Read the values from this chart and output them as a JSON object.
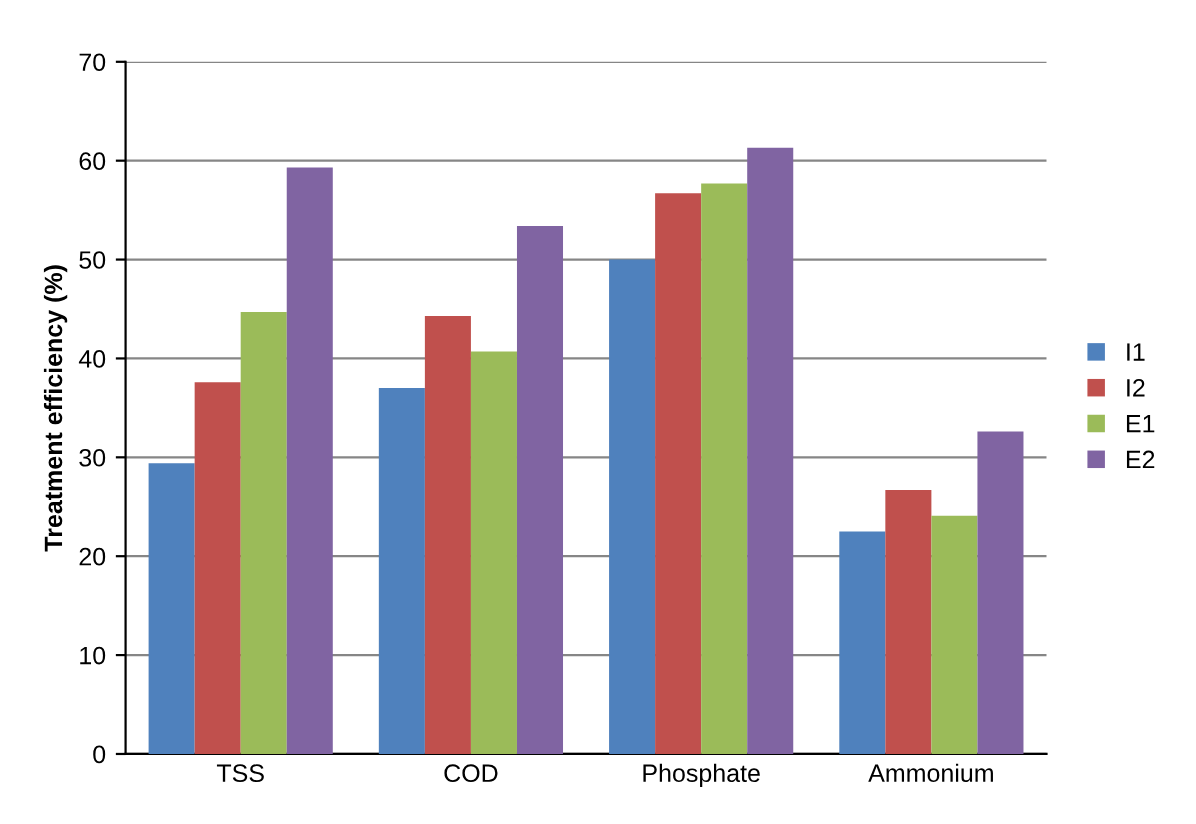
{
  "chart_data": {
    "type": "bar",
    "ylabel": "Treatment efficiency (%)",
    "categories": [
      "TSS",
      "COD",
      "Phosphate",
      "Ammonium"
    ],
    "series": [
      {
        "name": "I1",
        "color": "#4f81bd",
        "values": [
          29.4,
          37.0,
          50.0,
          22.5
        ]
      },
      {
        "name": "I2",
        "color": "#c0504d",
        "values": [
          37.6,
          44.3,
          56.7,
          26.7
        ]
      },
      {
        "name": "E1",
        "color": "#9bbb59",
        "values": [
          44.7,
          40.7,
          57.7,
          24.1
        ]
      },
      {
        "name": "E2",
        "color": "#8064a2",
        "values": [
          59.3,
          53.4,
          61.3,
          32.6
        ]
      }
    ],
    "ylim": [
      0,
      70
    ],
    "yticks": [
      0,
      10,
      20,
      30,
      40,
      50,
      60,
      70
    ],
    "grid": "y",
    "legend": "right"
  }
}
